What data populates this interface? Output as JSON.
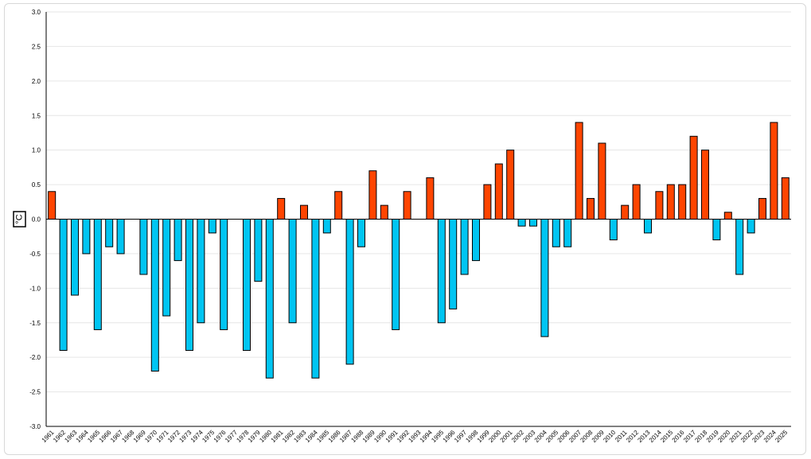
{
  "chart_data": {
    "type": "bar",
    "title": "",
    "xlabel": "",
    "ylabel": "°C",
    "ylim": [
      -3.0,
      3.0
    ],
    "yticks": [
      "3.0",
      "2.5",
      "2.0",
      "1.5",
      "1.0",
      "0.5",
      "0.0",
      "-0.5",
      "-1.0",
      "-1.5",
      "-2.0",
      "-2.5",
      "-3.0"
    ],
    "grid": true,
    "legend": "none",
    "colors": {
      "positive": "#ff4500",
      "negative": "#00c5f2",
      "outline": "#000000",
      "grid": "#e6e6e6"
    },
    "categories": [
      "1961",
      "1962",
      "1963",
      "1964",
      "1965",
      "1966",
      "1967",
      "1968",
      "1969",
      "1970",
      "1971",
      "1972",
      "1973",
      "1974",
      "1975",
      "1976",
      "1977",
      "1978",
      "1979",
      "1980",
      "1981",
      "1982",
      "1983",
      "1984",
      "1985",
      "1986",
      "1987",
      "1988",
      "1989",
      "1990",
      "1991",
      "1992",
      "1993",
      "1994",
      "1995",
      "1996",
      "1997",
      "1998",
      "1999",
      "2000",
      "2001",
      "2002",
      "2003",
      "2004",
      "2005",
      "2006",
      "2007",
      "2008",
      "2009",
      "2010",
      "2011",
      "2012",
      "2013",
      "2014",
      "2015",
      "2016",
      "2017",
      "2018",
      "2019",
      "2020",
      "2021",
      "2022",
      "2023",
      "2024",
      "2025"
    ],
    "values": [
      0.4,
      -1.9,
      -1.1,
      -0.5,
      -1.6,
      -0.4,
      -0.5,
      0.0,
      -0.8,
      -2.2,
      -1.4,
      -0.6,
      -1.9,
      -1.5,
      -0.2,
      -1.6,
      0.0,
      -1.9,
      -0.9,
      -2.3,
      0.3,
      -1.5,
      0.2,
      -2.3,
      -0.2,
      0.4,
      -2.1,
      -0.4,
      0.7,
      0.2,
      -1.6,
      0.4,
      0.0,
      0.6,
      -1.5,
      -1.3,
      -0.8,
      -0.6,
      0.5,
      0.8,
      1.0,
      -0.1,
      -0.1,
      -1.7,
      -0.4,
      -0.4,
      1.4,
      0.3,
      1.1,
      -0.3,
      0.2,
      0.5,
      -0.2,
      0.4,
      0.5,
      0.5,
      1.2,
      1.0,
      -0.3,
      0.1,
      -0.8,
      -0.2,
      0.3,
      1.4,
      0.6
    ]
  }
}
